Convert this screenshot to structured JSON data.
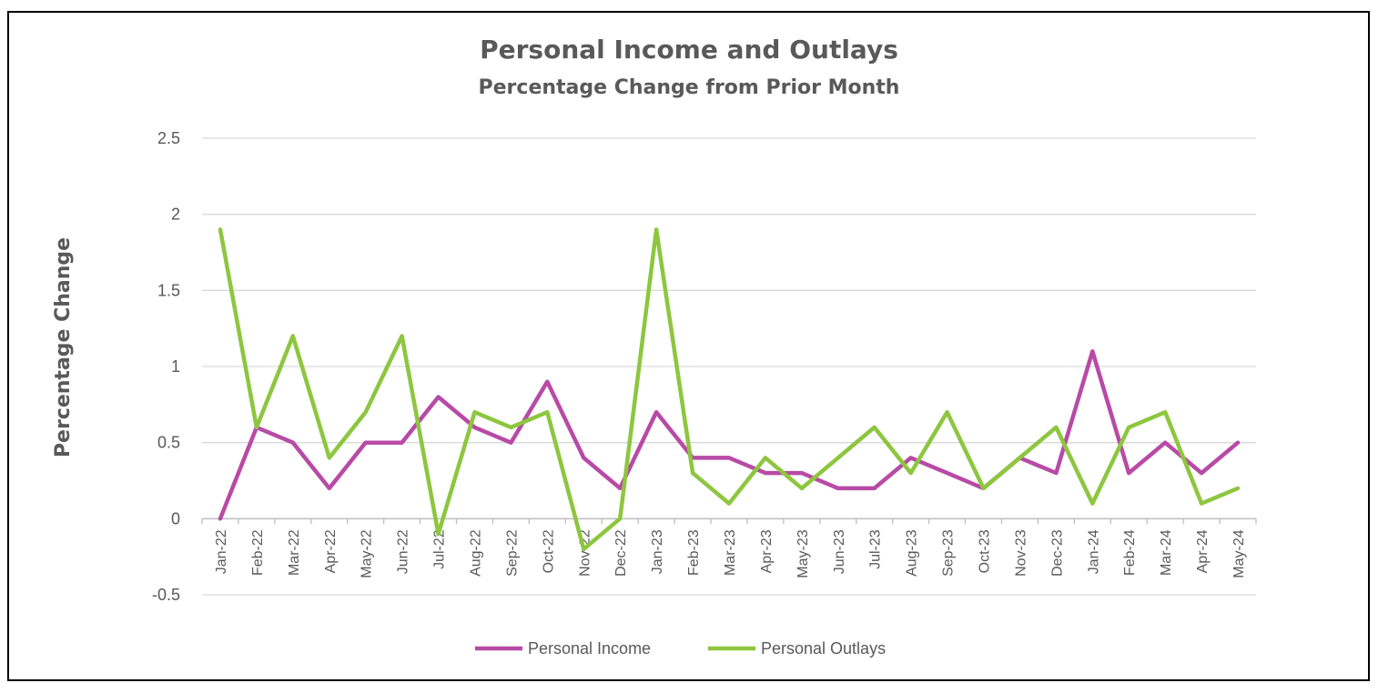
{
  "chart_data": {
    "type": "line",
    "title": "Personal Income and Outlays",
    "subtitle": "Percentage Change from Prior Month",
    "ylabel": "Percentage Change",
    "xlabel": "",
    "ylim": [
      -0.5,
      2.5
    ],
    "yticks": [
      -0.5,
      0,
      0.5,
      1,
      1.5,
      2,
      2.5
    ],
    "grid": "horizontal",
    "legend": "bottom",
    "categories": [
      "Jan-22",
      "Feb-22",
      "Mar-22",
      "Apr-22",
      "May-22",
      "Jun-22",
      "Jul-22",
      "Aug-22",
      "Sep-22",
      "Oct-22",
      "Nov-22",
      "Dec-22",
      "Jan-23",
      "Feb-23",
      "Mar-23",
      "Apr-23",
      "May-23",
      "Jun-23",
      "Jul-23",
      "Aug-23",
      "Sep-23",
      "Oct-23",
      "Nov-23",
      "Dec-23",
      "Jan-24",
      "Feb-24",
      "Mar-24",
      "Apr-24",
      "May-24"
    ],
    "series": [
      {
        "name": "Personal Income",
        "color": "#B84AA6",
        "values": [
          0,
          0.6,
          0.5,
          0.2,
          0.5,
          0.5,
          0.8,
          0.6,
          0.5,
          0.9,
          0.4,
          0.2,
          0.7,
          0.4,
          0.4,
          0.3,
          0.3,
          0.2,
          0.2,
          0.4,
          0.3,
          0.2,
          0.4,
          0.3,
          1.1,
          0.3,
          0.5,
          0.3,
          0.5
        ]
      },
      {
        "name": "Personal Outlays",
        "color": "#8DC63F",
        "values": [
          1.9,
          0.6,
          1.2,
          0.4,
          0.7,
          1.2,
          -0.1,
          0.7,
          0.6,
          0.7,
          -0.2,
          0,
          1.9,
          0.3,
          0.1,
          0.4,
          0.2,
          0.4,
          0.6,
          0.3,
          0.7,
          0.2,
          0.4,
          0.6,
          0.1,
          0.6,
          0.7,
          0.1,
          0.2
        ]
      }
    ]
  }
}
